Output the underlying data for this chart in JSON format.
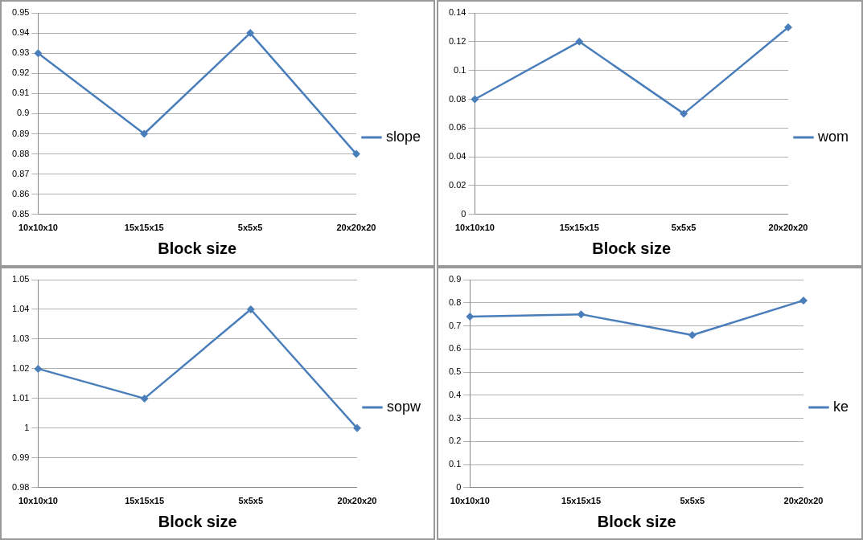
{
  "chart_data": [
    {
      "type": "line",
      "xlabel": "Block size",
      "categories": [
        "10x10x10",
        "15x15x15",
        "5x5x5",
        "20x20x20"
      ],
      "series": [
        {
          "name": "slope",
          "color": "#4a7ebb",
          "values": [
            0.93,
            0.89,
            0.94,
            0.88
          ]
        }
      ],
      "ylim": [
        0.85,
        0.95
      ],
      "yticks": [
        0.85,
        0.86,
        0.87,
        0.88,
        0.89,
        0.9,
        0.91,
        0.92,
        0.93,
        0.94,
        0.95
      ],
      "grid": "y",
      "legend": "right",
      "marker": "diamond"
    },
    {
      "type": "line",
      "xlabel": "Block size",
      "categories": [
        "10x10x10",
        "15x15x15",
        "5x5x5",
        "20x20x20"
      ],
      "series": [
        {
          "name": "wom",
          "color": "#4a7ebb",
          "values": [
            0.08,
            0.12,
            0.07,
            0.13
          ]
        }
      ],
      "ylim": [
        0,
        0.14
      ],
      "yticks": [
        0,
        0.02,
        0.04,
        0.06,
        0.08,
        0.1,
        0.12,
        0.14
      ],
      "grid": "y",
      "legend": "right",
      "marker": "diamond"
    },
    {
      "type": "line",
      "xlabel": "Block size",
      "categories": [
        "10x10x10",
        "15x15x15",
        "5x5x5",
        "20x20x20"
      ],
      "series": [
        {
          "name": "sopw",
          "color": "#4a7ebb",
          "values": [
            1.02,
            1.01,
            1.04,
            1.0
          ]
        }
      ],
      "ylim": [
        0.98,
        1.05
      ],
      "yticks": [
        0.98,
        0.99,
        1,
        1.01,
        1.02,
        1.03,
        1.04,
        1.05
      ],
      "grid": "y",
      "legend": "right",
      "marker": "diamond"
    },
    {
      "type": "line",
      "xlabel": "Block size",
      "categories": [
        "10x10x10",
        "15x15x15",
        "5x5x5",
        "20x20x20"
      ],
      "series": [
        {
          "name": "ke",
          "color": "#4a7ebb",
          "values": [
            0.74,
            0.75,
            0.66,
            0.81
          ]
        }
      ],
      "ylim": [
        0,
        0.9
      ],
      "yticks": [
        0,
        0.1,
        0.2,
        0.3,
        0.4,
        0.5,
        0.6,
        0.7,
        0.8,
        0.9
      ],
      "grid": "y",
      "legend": "right",
      "marker": "diamond"
    }
  ]
}
